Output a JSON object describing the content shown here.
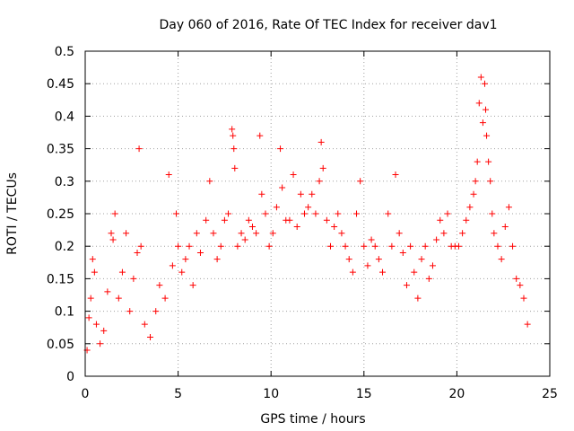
{
  "chart_data": {
    "type": "scatter",
    "title": "Day 060 of 2016, Rate Of TEC Index for receiver dav1",
    "xlabel": "GPS time / hours",
    "ylabel": "ROTI / TECUs",
    "xlim": [
      0,
      25
    ],
    "ylim": [
      0,
      0.5
    ],
    "x_ticks": [
      0,
      5,
      10,
      15,
      20,
      25
    ],
    "y_ticks": [
      0,
      0.05,
      0.1,
      0.15,
      0.2,
      0.25,
      0.3,
      0.35,
      0.4,
      0.45,
      0.5
    ],
    "x_tick_labels": [
      "0",
      "5",
      "10",
      "15",
      "20",
      "25"
    ],
    "y_tick_labels": [
      "0",
      "0.05",
      "0.1",
      "0.15",
      "0.2",
      "0.25",
      "0.3",
      "0.35",
      "0.4",
      "0.45",
      "0.5"
    ],
    "grid": true,
    "marker": "+",
    "color": "#ff0000",
    "series": [
      {
        "points": [
          [
            0.1,
            0.04
          ],
          [
            0.2,
            0.09
          ],
          [
            0.3,
            0.12
          ],
          [
            0.4,
            0.18
          ],
          [
            0.5,
            0.16
          ],
          [
            0.6,
            0.08
          ],
          [
            0.8,
            0.05
          ],
          [
            1.0,
            0.07
          ],
          [
            1.2,
            0.13
          ],
          [
            1.4,
            0.22
          ],
          [
            1.5,
            0.21
          ],
          [
            1.6,
            0.25
          ],
          [
            1.8,
            0.12
          ],
          [
            2.0,
            0.16
          ],
          [
            2.2,
            0.22
          ],
          [
            2.4,
            0.1
          ],
          [
            2.6,
            0.15
          ],
          [
            2.8,
            0.19
          ],
          [
            2.9,
            0.35
          ],
          [
            3.0,
            0.2
          ],
          [
            3.2,
            0.08
          ],
          [
            3.5,
            0.06
          ],
          [
            3.8,
            0.1
          ],
          [
            4.0,
            0.14
          ],
          [
            4.3,
            0.12
          ],
          [
            4.5,
            0.31
          ],
          [
            4.7,
            0.17
          ],
          [
            4.9,
            0.25
          ],
          [
            5.0,
            0.2
          ],
          [
            5.2,
            0.16
          ],
          [
            5.4,
            0.18
          ],
          [
            5.6,
            0.2
          ],
          [
            5.8,
            0.14
          ],
          [
            6.0,
            0.22
          ],
          [
            6.2,
            0.19
          ],
          [
            6.5,
            0.24
          ],
          [
            6.7,
            0.3
          ],
          [
            6.9,
            0.22
          ],
          [
            7.1,
            0.18
          ],
          [
            7.3,
            0.2
          ],
          [
            7.5,
            0.24
          ],
          [
            7.7,
            0.25
          ],
          [
            7.9,
            0.38
          ],
          [
            7.95,
            0.37
          ],
          [
            8.0,
            0.35
          ],
          [
            8.05,
            0.32
          ],
          [
            8.2,
            0.2
          ],
          [
            8.4,
            0.22
          ],
          [
            8.6,
            0.21
          ],
          [
            8.8,
            0.24
          ],
          [
            9.0,
            0.23
          ],
          [
            9.2,
            0.22
          ],
          [
            9.4,
            0.37
          ],
          [
            9.5,
            0.28
          ],
          [
            9.7,
            0.25
          ],
          [
            9.9,
            0.2
          ],
          [
            10.1,
            0.22
          ],
          [
            10.3,
            0.26
          ],
          [
            10.5,
            0.35
          ],
          [
            10.6,
            0.29
          ],
          [
            10.8,
            0.24
          ],
          [
            11.0,
            0.24
          ],
          [
            11.2,
            0.31
          ],
          [
            11.4,
            0.23
          ],
          [
            11.6,
            0.28
          ],
          [
            11.8,
            0.25
          ],
          [
            12.0,
            0.26
          ],
          [
            12.2,
            0.28
          ],
          [
            12.4,
            0.25
          ],
          [
            12.6,
            0.3
          ],
          [
            12.7,
            0.36
          ],
          [
            12.8,
            0.32
          ],
          [
            13.0,
            0.24
          ],
          [
            13.2,
            0.2
          ],
          [
            13.4,
            0.23
          ],
          [
            13.6,
            0.25
          ],
          [
            13.8,
            0.22
          ],
          [
            14.0,
            0.2
          ],
          [
            14.2,
            0.18
          ],
          [
            14.4,
            0.16
          ],
          [
            14.6,
            0.25
          ],
          [
            14.8,
            0.3
          ],
          [
            15.0,
            0.2
          ],
          [
            15.2,
            0.17
          ],
          [
            15.4,
            0.21
          ],
          [
            15.6,
            0.2
          ],
          [
            15.8,
            0.18
          ],
          [
            16.0,
            0.16
          ],
          [
            16.3,
            0.25
          ],
          [
            16.5,
            0.2
          ],
          [
            16.7,
            0.31
          ],
          [
            16.9,
            0.22
          ],
          [
            17.1,
            0.19
          ],
          [
            17.3,
            0.14
          ],
          [
            17.5,
            0.2
          ],
          [
            17.7,
            0.16
          ],
          [
            17.9,
            0.12
          ],
          [
            18.1,
            0.18
          ],
          [
            18.3,
            0.2
          ],
          [
            18.5,
            0.15
          ],
          [
            18.7,
            0.17
          ],
          [
            18.9,
            0.21
          ],
          [
            19.1,
            0.24
          ],
          [
            19.3,
            0.22
          ],
          [
            19.5,
            0.25
          ],
          [
            19.7,
            0.2
          ],
          [
            19.9,
            0.2
          ],
          [
            20.1,
            0.2
          ],
          [
            20.3,
            0.22
          ],
          [
            20.5,
            0.24
          ],
          [
            20.7,
            0.26
          ],
          [
            20.9,
            0.28
          ],
          [
            21.0,
            0.3
          ],
          [
            21.1,
            0.33
          ],
          [
            21.2,
            0.42
          ],
          [
            21.3,
            0.46
          ],
          [
            21.4,
            0.39
          ],
          [
            21.5,
            0.45
          ],
          [
            21.55,
            0.41
          ],
          [
            21.6,
            0.37
          ],
          [
            21.7,
            0.33
          ],
          [
            21.8,
            0.3
          ],
          [
            21.9,
            0.25
          ],
          [
            22.0,
            0.22
          ],
          [
            22.2,
            0.2
          ],
          [
            22.4,
            0.18
          ],
          [
            22.6,
            0.23
          ],
          [
            22.8,
            0.26
          ],
          [
            23.0,
            0.2
          ],
          [
            23.2,
            0.15
          ],
          [
            23.4,
            0.14
          ],
          [
            23.6,
            0.12
          ],
          [
            23.8,
            0.08
          ]
        ]
      }
    ]
  }
}
